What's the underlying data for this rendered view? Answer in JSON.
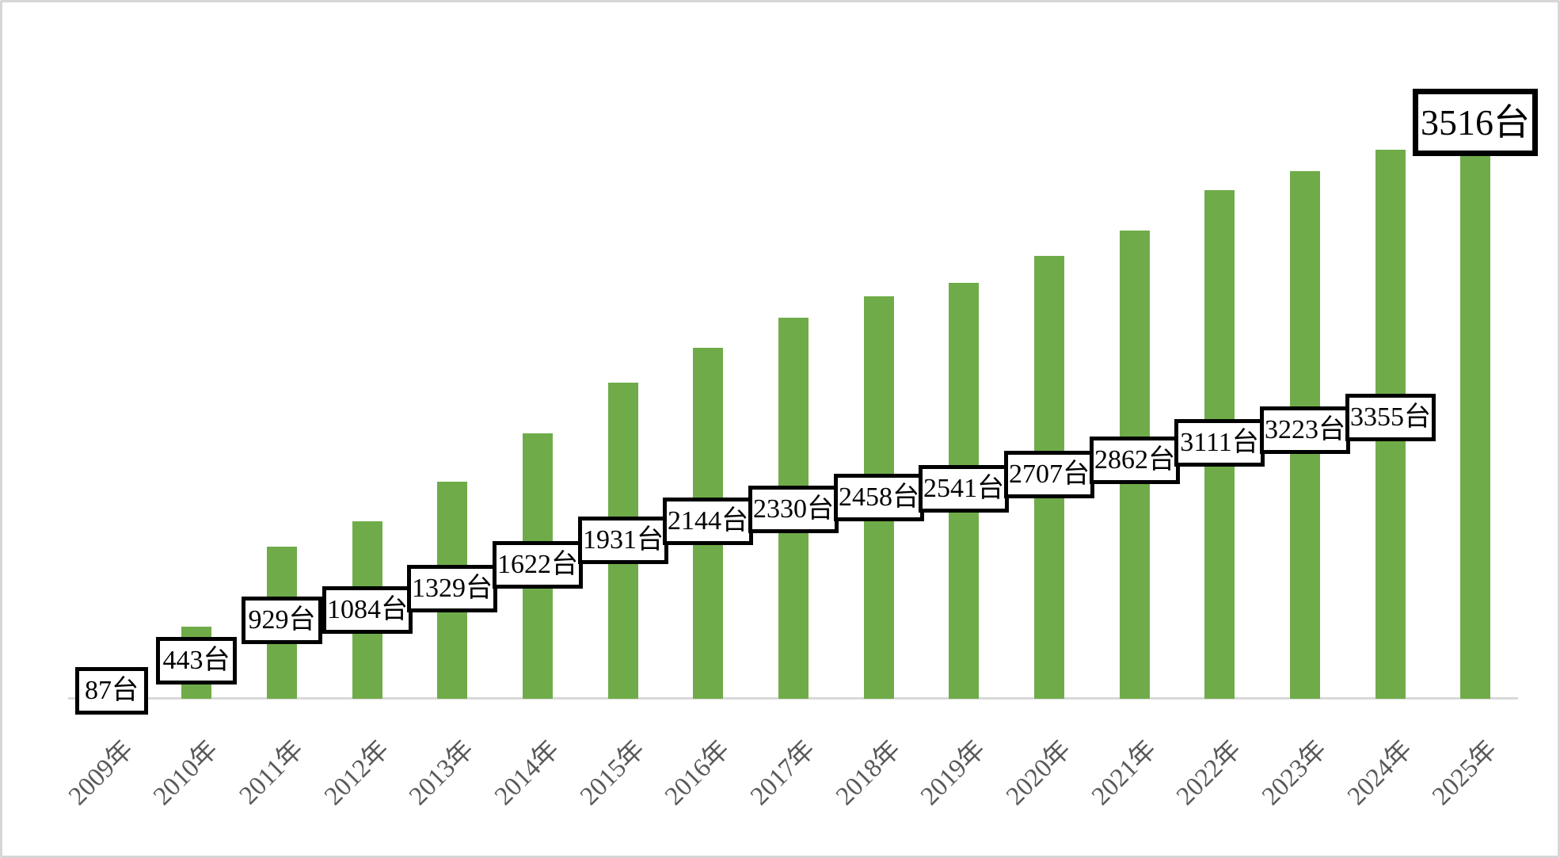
{
  "chart_data": {
    "type": "bar",
    "title": "",
    "xlabel": "",
    "ylabel": "",
    "unit": "台",
    "categories": [
      "2009年",
      "2010年",
      "2011年",
      "2012年",
      "2013年",
      "2014年",
      "2015年",
      "2016年",
      "2017年",
      "2018年",
      "2019年",
      "2020年",
      "2021年",
      "2022年",
      "2023年",
      "2024年",
      "2025年"
    ],
    "values": [
      87,
      443,
      929,
      1084,
      1329,
      1622,
      1931,
      2144,
      2330,
      2458,
      2541,
      2707,
      2862,
      3111,
      3223,
      3355,
      3516
    ],
    "labels": [
      "87台",
      "443台",
      "929台",
      "1084台",
      "1329台",
      "1622台",
      "1931台",
      "2144台",
      "2330台",
      "2458台",
      "2541台",
      "2707台",
      "2862台",
      "3111台",
      "3223台",
      "3355台",
      "3516台"
    ],
    "highlighted_label": "3516台",
    "ylim": [
      0,
      3600
    ],
    "grid": false,
    "legend": false,
    "axis_labels_rotation_deg": -45,
    "style": {
      "bar_color": "#6FAC49",
      "axis_line_color": "#D9D9D9",
      "tick_label_color": "#595959",
      "data_label_border_color": "#000000",
      "data_label_fill_color": "#FFFFFF",
      "frame_border_color": "#D6D6D6",
      "background_color": "#FFFFFF"
    }
  }
}
